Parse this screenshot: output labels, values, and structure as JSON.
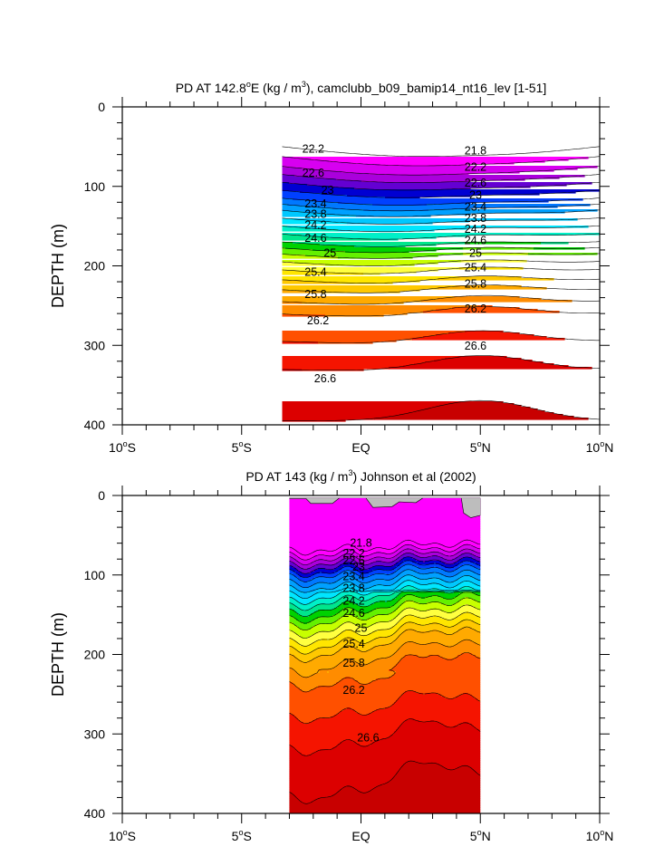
{
  "colors": {
    "bands": [
      "#c80000",
      "#dc0000",
      "#f51400",
      "#ff5000",
      "#ff8c00",
      "#ffaa00",
      "#ffc800",
      "#ffe600",
      "#ffff40",
      "#c8ff00",
      "#64f000",
      "#00d200",
      "#00e68c",
      "#00f0c8",
      "#00e6ff",
      "#00c8ff",
      "#00a0ff",
      "#0078ff",
      "#0040ff",
      "#0000d2",
      "#6400d2",
      "#aa00dc",
      "#d700f0",
      "#ff00ff"
    ],
    "missing": "#bdbdbd",
    "contour": "#000000"
  },
  "chart_data": [
    {
      "type": "contour",
      "title": "PD AT 142.8°E (kg / m³), camclubb_b09_bamip14_nt16_lev [1-51]",
      "title_parts": {
        "pre": "PD AT 142.8",
        "deg": "o",
        "mid": "E (kg / m",
        "sup": "3",
        "post": "), camclubb_b09_bamip14_nt16_lev [1-51]"
      },
      "ylabel": "DEPTH (m)",
      "xlim": [
        -10,
        10
      ],
      "ylim": [
        400,
        0
      ],
      "x_ticks": [
        {
          "num": "10",
          "hemi": "S"
        },
        {
          "num": "5",
          "hemi": "S"
        },
        {
          "eq": "EQ"
        },
        {
          "num": "5",
          "hemi": "N"
        },
        {
          "num": "10",
          "hemi": "N"
        }
      ],
      "y_ticks": [
        "0",
        "100",
        "200",
        "300",
        "400"
      ],
      "data_extent_x": [
        -3.3,
        10
      ],
      "contour_interval": 0.2,
      "field_anchor_depths": {
        "21.8": 25,
        "22.2": 50,
        "22.6": 75,
        "23.0": 95,
        "23.4": 115,
        "23.8": 130,
        "24.2": 150,
        "24.6": 170,
        "25.0": 185,
        "25.4": 205,
        "25.8": 230,
        "26.2": 260,
        "26.6": 330,
        "26.8": 395
      },
      "contour_labels": [
        {
          "text": "22.2",
          "x": -2.0,
          "y": 53
        },
        {
          "text": "22.6",
          "x": -2.0,
          "y": 83
        },
        {
          "text": "23",
          "x": -1.4,
          "y": 105
        },
        {
          "text": "23.4",
          "x": -1.9,
          "y": 122
        },
        {
          "text": "23.8",
          "x": -1.9,
          "y": 135
        },
        {
          "text": "24.2",
          "x": -1.9,
          "y": 149
        },
        {
          "text": "24.6",
          "x": -1.9,
          "y": 165
        },
        {
          "text": "25",
          "x": -1.3,
          "y": 184
        },
        {
          "text": "25.4",
          "x": -1.9,
          "y": 208
        },
        {
          "text": "25.8",
          "x": -1.9,
          "y": 236
        },
        {
          "text": "26.2",
          "x": -1.8,
          "y": 269
        },
        {
          "text": "26.6",
          "x": -1.5,
          "y": 342
        },
        {
          "text": "21.8",
          "x": 4.8,
          "y": 55
        },
        {
          "text": "22.2",
          "x": 4.8,
          "y": 76
        },
        {
          "text": "22.6",
          "x": 4.8,
          "y": 96
        },
        {
          "text": "23",
          "x": 4.8,
          "y": 111
        },
        {
          "text": "23.4",
          "x": 4.8,
          "y": 126
        },
        {
          "text": "23.8",
          "x": 4.8,
          "y": 140
        },
        {
          "text": "24.2",
          "x": 4.8,
          "y": 154
        },
        {
          "text": "24.6",
          "x": 4.8,
          "y": 168
        },
        {
          "text": "25",
          "x": 4.8,
          "y": 184
        },
        {
          "text": "25.4",
          "x": 4.8,
          "y": 202
        },
        {
          "text": "25.8",
          "x": 4.8,
          "y": 223
        },
        {
          "text": "26.2",
          "x": 4.8,
          "y": 254
        },
        {
          "text": "26.6",
          "x": 4.8,
          "y": 301
        }
      ]
    },
    {
      "type": "contour",
      "title": "PD AT 143 (kg / m³) Johnson et al (2002)",
      "title_parts": {
        "pre": "PD AT 143 (kg / m",
        "sup": "3",
        "post": ") Johnson et al (2002)"
      },
      "ylabel": "DEPTH (m)",
      "xlim": [
        -10,
        10
      ],
      "ylim": [
        400,
        0
      ],
      "x_ticks": [
        {
          "num": "10",
          "hemi": "S"
        },
        {
          "num": "5",
          "hemi": "S"
        },
        {
          "eq": "EQ"
        },
        {
          "num": "5",
          "hemi": "N"
        },
        {
          "num": "10",
          "hemi": "N"
        }
      ],
      "y_ticks": [
        "0",
        "100",
        "200",
        "300",
        "400"
      ],
      "data_extent_x": [
        -3.0,
        5.0
      ],
      "contour_interval": 0.2,
      "field_anchor_depths": {
        "21.0": 8,
        "21.4": 28,
        "21.8": 55,
        "22.2": 70,
        "22.6": 82,
        "23.0": 93,
        "23.4": 103,
        "23.8": 118,
        "24.2": 133,
        "24.6": 148,
        "25.0": 165,
        "25.4": 185,
        "25.8": 205,
        "26.2": 240,
        "26.6": 320,
        "26.8": 380
      },
      "contour_labels": [
        {
          "text": "21.8",
          "x": 0.0,
          "y": 60
        },
        {
          "text": "22.2",
          "x": -0.3,
          "y": 73
        },
        {
          "text": "22.6",
          "x": -0.3,
          "y": 82
        },
        {
          "text": "23",
          "x": -0.1,
          "y": 90
        },
        {
          "text": "23.4",
          "x": -0.3,
          "y": 102
        },
        {
          "text": "23.8",
          "x": -0.3,
          "y": 117
        },
        {
          "text": "24.2",
          "x": -0.3,
          "y": 133
        },
        {
          "text": "24.6",
          "x": -0.3,
          "y": 148
        },
        {
          "text": "25",
          "x": 0.0,
          "y": 167
        },
        {
          "text": "25.4",
          "x": -0.3,
          "y": 187
        },
        {
          "text": "25.8",
          "x": -0.3,
          "y": 211
        },
        {
          "text": "26.2",
          "x": -0.3,
          "y": 245
        },
        {
          "text": "26.6",
          "x": 0.3,
          "y": 305
        }
      ]
    }
  ]
}
